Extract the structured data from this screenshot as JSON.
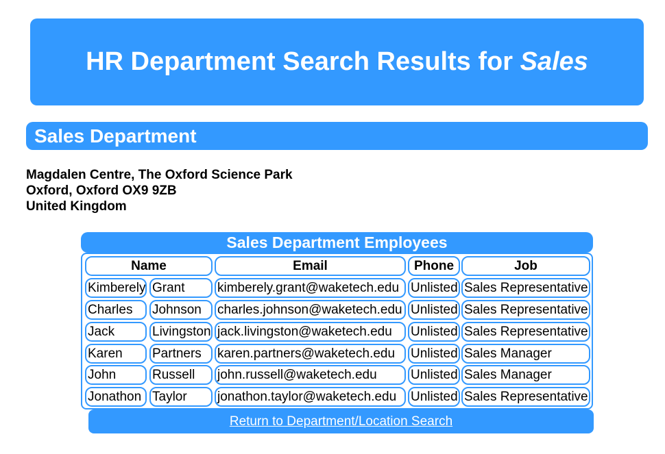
{
  "header": {
    "title_prefix": "HR Department Search Results for ",
    "search_term": "Sales"
  },
  "department": {
    "name": "Sales Department",
    "address": [
      "Magdalen Centre, The Oxford Science Park",
      "Oxford, Oxford OX9 9ZB",
      "United Kingdom"
    ]
  },
  "employees_table": {
    "caption": "Sales Department Employees",
    "columns": [
      "Name",
      "Email",
      "Phone",
      "Job"
    ],
    "rows": [
      {
        "first": "Kimberely",
        "last": "Grant",
        "email": "kimberely.grant@waketech.edu",
        "phone": "Unlisted",
        "job": "Sales Representative"
      },
      {
        "first": "Charles",
        "last": "Johnson",
        "email": "charles.johnson@waketech.edu",
        "phone": "Unlisted",
        "job": "Sales Representative"
      },
      {
        "first": "Jack",
        "last": "Livingston",
        "email": "jack.livingston@waketech.edu",
        "phone": "Unlisted",
        "job": "Sales Representative"
      },
      {
        "first": "Karen",
        "last": "Partners",
        "email": "karen.partners@waketech.edu",
        "phone": "Unlisted",
        "job": "Sales Manager"
      },
      {
        "first": "John",
        "last": "Russell",
        "email": "john.russell@waketech.edu",
        "phone": "Unlisted",
        "job": "Sales Manager"
      },
      {
        "first": "Jonathon",
        "last": "Taylor",
        "email": "jonathon.taylor@waketech.edu",
        "phone": "Unlisted",
        "job": "Sales Representative"
      }
    ]
  },
  "return_link": {
    "label": "Return to Department/Location Search"
  },
  "colors": {
    "accent": "#3399ff",
    "text_on_accent": "#ffffff"
  }
}
